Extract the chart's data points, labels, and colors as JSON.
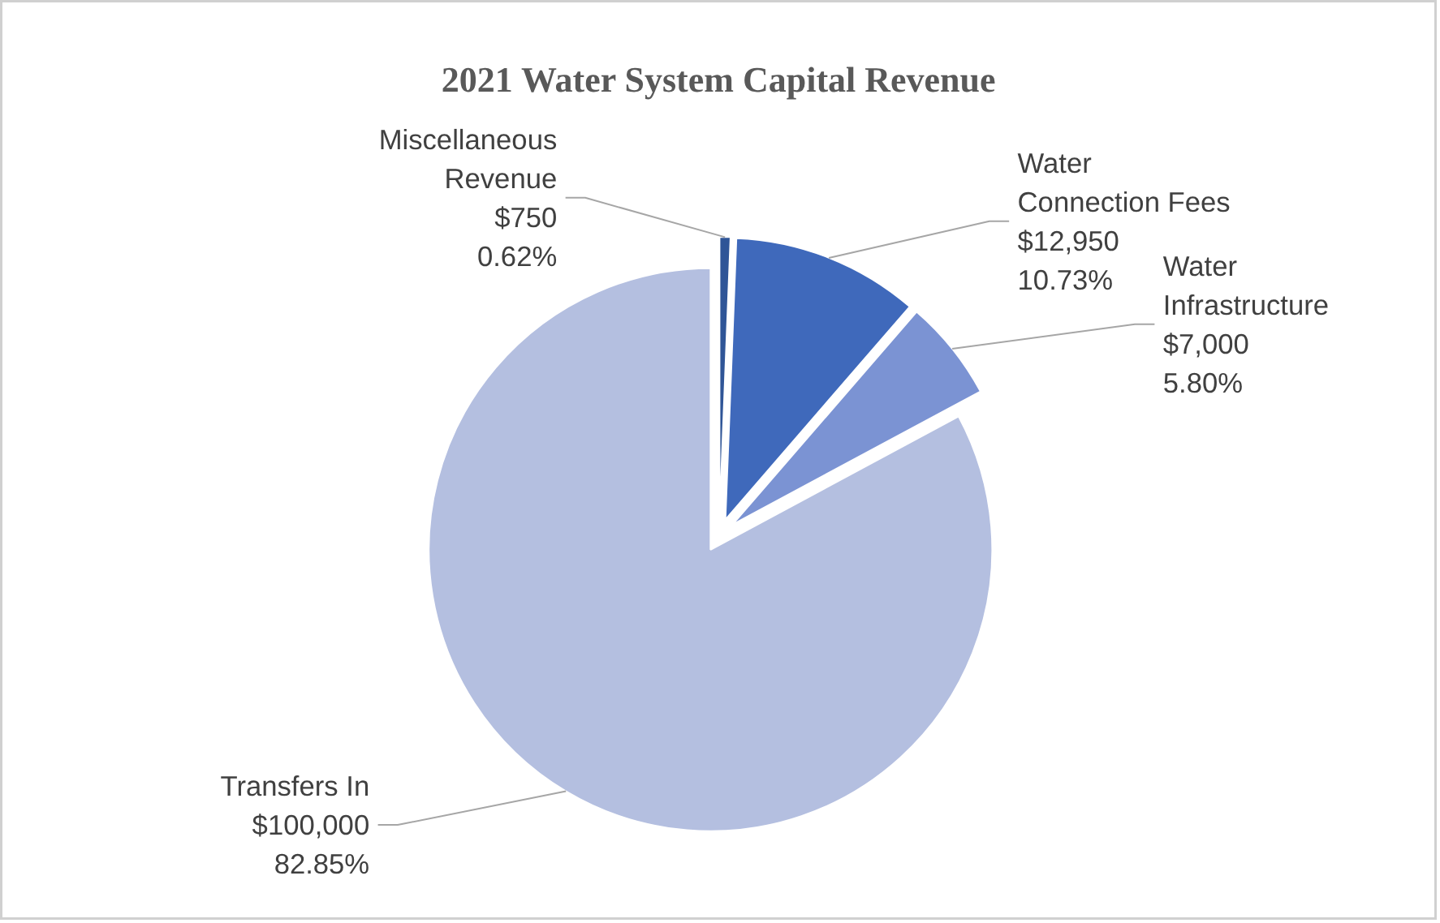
{
  "chart_data": {
    "type": "pie",
    "title": "2021 Water System Capital Revenue",
    "categories": [
      "Miscellaneous Revenue",
      "Water Connection Fees",
      "Water Infrastructure",
      "Transfers In"
    ],
    "values": [
      750,
      12950,
      7000,
      100000
    ],
    "value_labels": [
      "$750\n0.62%",
      "$12,950\n10.73%",
      "$7,000\n5.80%",
      "$100,000\n82.85%"
    ],
    "colors": [
      "#2f5597",
      "#3f69bb",
      "#7b93d3",
      "#b4bfe0"
    ]
  }
}
